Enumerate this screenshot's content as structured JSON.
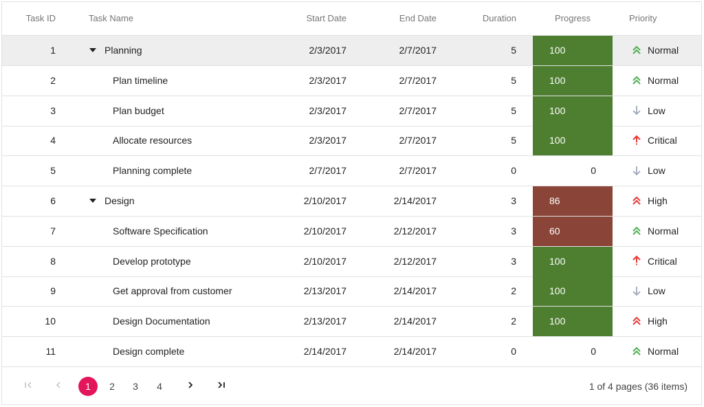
{
  "columns": {
    "task_id": "Task ID",
    "task_name": "Task Name",
    "start_date": "Start Date",
    "end_date": "End Date",
    "duration": "Duration",
    "progress": "Progress",
    "priority": "Priority"
  },
  "colors": {
    "progress_complete": "#4e7f30",
    "progress_partial": "#8b4538",
    "priority_normal": "#4caf50",
    "priority_high": "#e53935",
    "priority_critical": "#e53935",
    "priority_low": "#9ea7b8",
    "pager_active": "#e3165b"
  },
  "rows": [
    {
      "id": "1",
      "name": "Planning",
      "parent": true,
      "start": "2/3/2017",
      "end": "2/7/2017",
      "duration": "5",
      "progress": "100",
      "priority": "Normal",
      "selected": true
    },
    {
      "id": "2",
      "name": "Plan timeline",
      "parent": false,
      "start": "2/3/2017",
      "end": "2/7/2017",
      "duration": "5",
      "progress": "100",
      "priority": "Normal"
    },
    {
      "id": "3",
      "name": "Plan budget",
      "parent": false,
      "start": "2/3/2017",
      "end": "2/7/2017",
      "duration": "5",
      "progress": "100",
      "priority": "Low"
    },
    {
      "id": "4",
      "name": "Allocate resources",
      "parent": false,
      "start": "2/3/2017",
      "end": "2/7/2017",
      "duration": "5",
      "progress": "100",
      "priority": "Critical"
    },
    {
      "id": "5",
      "name": "Planning complete",
      "parent": false,
      "start": "2/7/2017",
      "end": "2/7/2017",
      "duration": "0",
      "progress": "0",
      "priority": "Low"
    },
    {
      "id": "6",
      "name": "Design",
      "parent": true,
      "start": "2/10/2017",
      "end": "2/14/2017",
      "duration": "3",
      "progress": "86",
      "priority": "High"
    },
    {
      "id": "7",
      "name": "Software Specification",
      "parent": false,
      "start": "2/10/2017",
      "end": "2/12/2017",
      "duration": "3",
      "progress": "60",
      "priority": "Normal"
    },
    {
      "id": "8",
      "name": "Develop prototype",
      "parent": false,
      "start": "2/10/2017",
      "end": "2/12/2017",
      "duration": "3",
      "progress": "100",
      "priority": "Critical"
    },
    {
      "id": "9",
      "name": "Get approval from customer",
      "parent": false,
      "start": "2/13/2017",
      "end": "2/14/2017",
      "duration": "2",
      "progress": "100",
      "priority": "Low"
    },
    {
      "id": "10",
      "name": "Design Documentation",
      "parent": false,
      "start": "2/13/2017",
      "end": "2/14/2017",
      "duration": "2",
      "progress": "100",
      "priority": "High"
    },
    {
      "id": "11",
      "name": "Design complete",
      "parent": false,
      "start": "2/14/2017",
      "end": "2/14/2017",
      "duration": "0",
      "progress": "0",
      "priority": "Normal"
    }
  ],
  "pager": {
    "first_icon": "first-page-icon",
    "prev_icon": "previous-page-icon",
    "pages": [
      "1",
      "2",
      "3",
      "4"
    ],
    "current": "1",
    "next_icon": "next-page-icon",
    "last_icon": "last-page-icon",
    "info": "1 of 4 pages (36 items)"
  }
}
